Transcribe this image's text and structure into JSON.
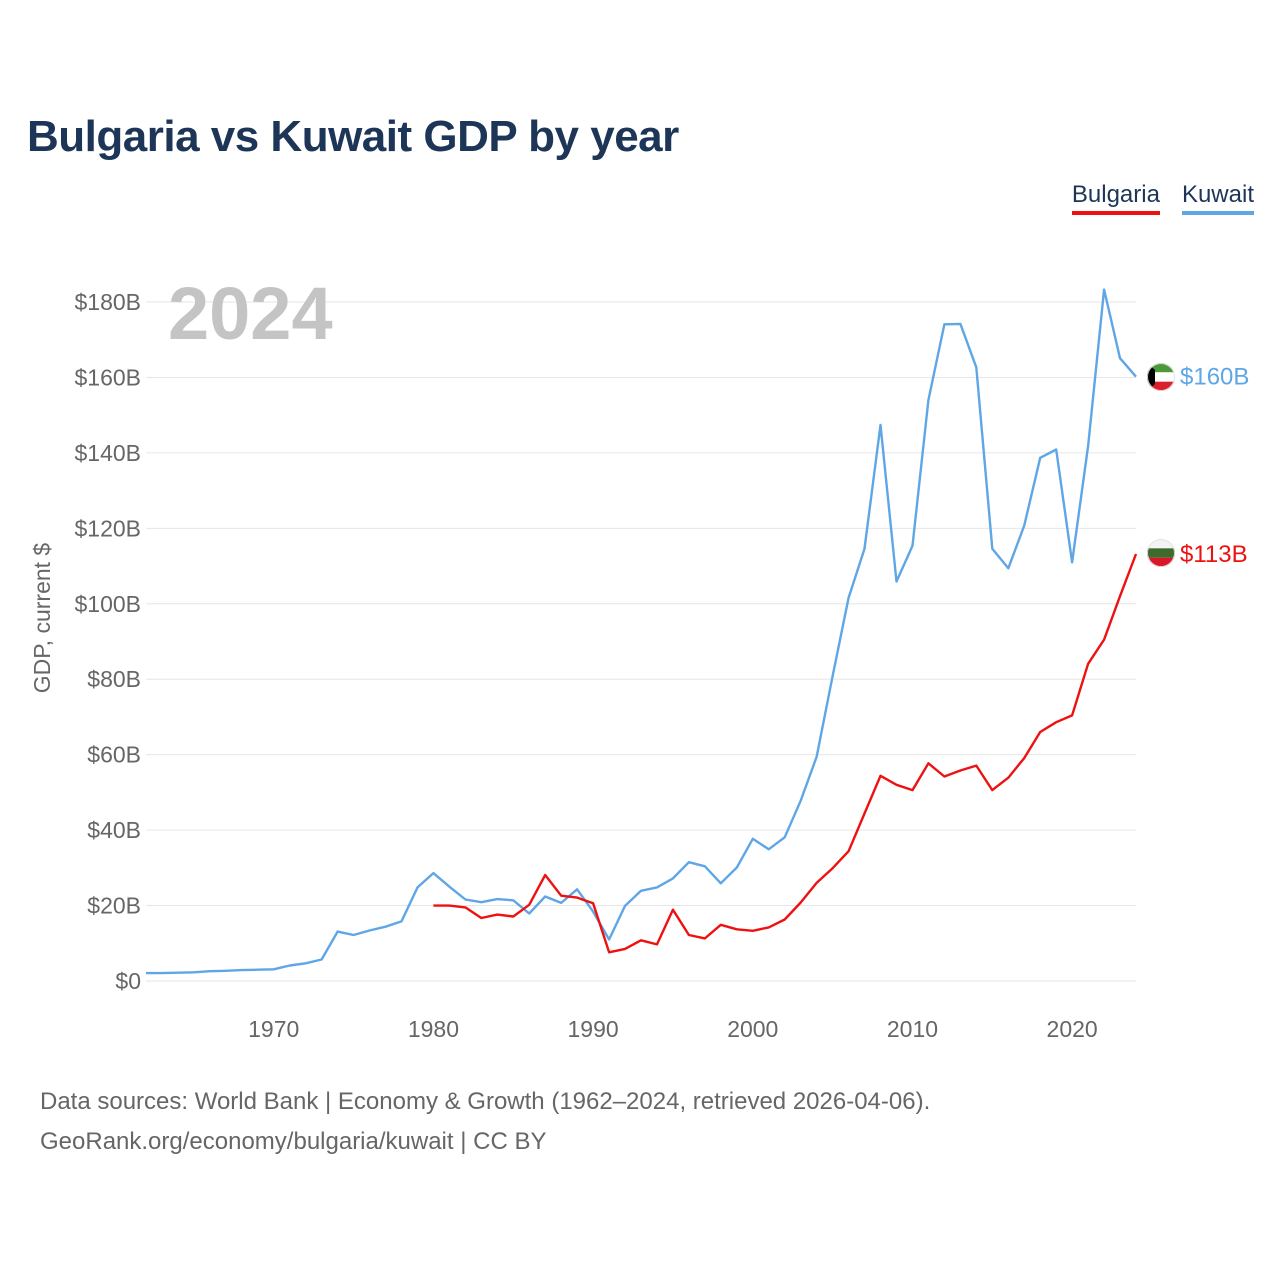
{
  "title": "Bulgaria vs Kuwait GDP by year",
  "legend": [
    "Bulgaria",
    "Kuwait"
  ],
  "year_label": "2024",
  "footer": {
    "line1": "Data sources: World Bank | Economy & Growth (1962–2024, retrieved 2026-04-06).",
    "line2": "GeoRank.org/economy/bulgaria/kuwait | CC BY"
  },
  "colors": {
    "bulgaria": "#ee1111",
    "kuwait": "#5fa6e6",
    "grid": "#e6e6e6",
    "text": "#666666",
    "title": "#1d3557"
  },
  "chart_data": {
    "type": "line",
    "title": "Bulgaria vs Kuwait GDP by year",
    "xlabel": "",
    "ylabel": "GDP, current $",
    "xlim": [
      1962,
      2024
    ],
    "ylim": [
      0,
      180
    ],
    "x_ticks": [
      1970,
      1980,
      1990,
      2000,
      2010,
      2020
    ],
    "y_ticks": [
      {
        "value": 0,
        "label": "$0"
      },
      {
        "value": 20,
        "label": "$20B"
      },
      {
        "value": 40,
        "label": "$40B"
      },
      {
        "value": 60,
        "label": "$60B"
      },
      {
        "value": 80,
        "label": "$80B"
      },
      {
        "value": 100,
        "label": "$100B"
      },
      {
        "value": 120,
        "label": "$120B"
      },
      {
        "value": 140,
        "label": "$140B"
      },
      {
        "value": 160,
        "label": "$160B"
      },
      {
        "value": 180,
        "label": "$180B"
      }
    ],
    "series": [
      {
        "name": "Kuwait",
        "color": "#5fa6e6",
        "end_label": "$160B",
        "flag": "kuwait-flag-icon",
        "points": [
          [
            1962,
            2.1
          ],
          [
            1963,
            2.1
          ],
          [
            1964,
            2.2
          ],
          [
            1965,
            2.3
          ],
          [
            1966,
            2.6
          ],
          [
            1967,
            2.7
          ],
          [
            1968,
            2.9
          ],
          [
            1969,
            3.0
          ],
          [
            1970,
            3.1
          ],
          [
            1971,
            4.1
          ],
          [
            1972,
            4.7
          ],
          [
            1973,
            5.7
          ],
          [
            1974,
            13.1
          ],
          [
            1975,
            12.2
          ],
          [
            1976,
            13.4
          ],
          [
            1977,
            14.4
          ],
          [
            1978,
            15.8
          ],
          [
            1979,
            24.8
          ],
          [
            1980,
            28.6
          ],
          [
            1981,
            25.0
          ],
          [
            1982,
            21.6
          ],
          [
            1983,
            20.9
          ],
          [
            1984,
            21.7
          ],
          [
            1985,
            21.4
          ],
          [
            1986,
            17.9
          ],
          [
            1987,
            22.4
          ],
          [
            1988,
            20.7
          ],
          [
            1989,
            24.3
          ],
          [
            1990,
            18.4
          ],
          [
            1991,
            11.0
          ],
          [
            1992,
            19.9
          ],
          [
            1993,
            23.9
          ],
          [
            1994,
            24.8
          ],
          [
            1995,
            27.2
          ],
          [
            1996,
            31.5
          ],
          [
            1997,
            30.4
          ],
          [
            1998,
            25.9
          ],
          [
            1999,
            30.1
          ],
          [
            2000,
            37.7
          ],
          [
            2001,
            34.9
          ],
          [
            2002,
            38.1
          ],
          [
            2003,
            47.8
          ],
          [
            2004,
            59.4
          ],
          [
            2005,
            80.8
          ],
          [
            2006,
            101.6
          ],
          [
            2007,
            114.6
          ],
          [
            2008,
            147.4
          ],
          [
            2009,
            105.9
          ],
          [
            2010,
            115.4
          ],
          [
            2011,
            154.0
          ],
          [
            2012,
            174.1
          ],
          [
            2013,
            174.2
          ],
          [
            2014,
            162.7
          ],
          [
            2015,
            114.6
          ],
          [
            2016,
            109.4
          ],
          [
            2017,
            120.7
          ],
          [
            2018,
            138.7
          ],
          [
            2019,
            140.9
          ],
          [
            2020,
            111.0
          ],
          [
            2021,
            141.8
          ],
          [
            2022,
            183.3
          ],
          [
            2023,
            165.1
          ],
          [
            2024,
            160.2
          ]
        ]
      },
      {
        "name": "Bulgaria",
        "color": "#ee1111",
        "end_label": "$113B",
        "flag": "bulgaria-flag-icon",
        "points": [
          [
            1980,
            20.0
          ],
          [
            1981,
            20.0
          ],
          [
            1982,
            19.5
          ],
          [
            1983,
            16.7
          ],
          [
            1984,
            17.6
          ],
          [
            1985,
            17.1
          ],
          [
            1986,
            20.2
          ],
          [
            1987,
            28.1
          ],
          [
            1988,
            22.6
          ],
          [
            1989,
            22.1
          ],
          [
            1990,
            20.6
          ],
          [
            1991,
            7.6
          ],
          [
            1992,
            8.5
          ],
          [
            1993,
            10.8
          ],
          [
            1994,
            9.7
          ],
          [
            1995,
            18.9
          ],
          [
            1996,
            12.2
          ],
          [
            1997,
            11.3
          ],
          [
            1998,
            14.9
          ],
          [
            1999,
            13.7
          ],
          [
            2000,
            13.3
          ],
          [
            2001,
            14.2
          ],
          [
            2002,
            16.3
          ],
          [
            2003,
            20.8
          ],
          [
            2004,
            26.0
          ],
          [
            2005,
            29.9
          ],
          [
            2006,
            34.4
          ],
          [
            2007,
            44.4
          ],
          [
            2008,
            54.4
          ],
          [
            2009,
            52.0
          ],
          [
            2010,
            50.6
          ],
          [
            2011,
            57.7
          ],
          [
            2012,
            54.2
          ],
          [
            2013,
            55.8
          ],
          [
            2014,
            57.1
          ],
          [
            2015,
            50.6
          ],
          [
            2016,
            53.9
          ],
          [
            2017,
            59.1
          ],
          [
            2018,
            66.0
          ],
          [
            2019,
            68.6
          ],
          [
            2020,
            70.4
          ],
          [
            2021,
            84.1
          ],
          [
            2022,
            90.5
          ],
          [
            2023,
            102.0
          ],
          [
            2024,
            113.2
          ]
        ]
      }
    ]
  }
}
